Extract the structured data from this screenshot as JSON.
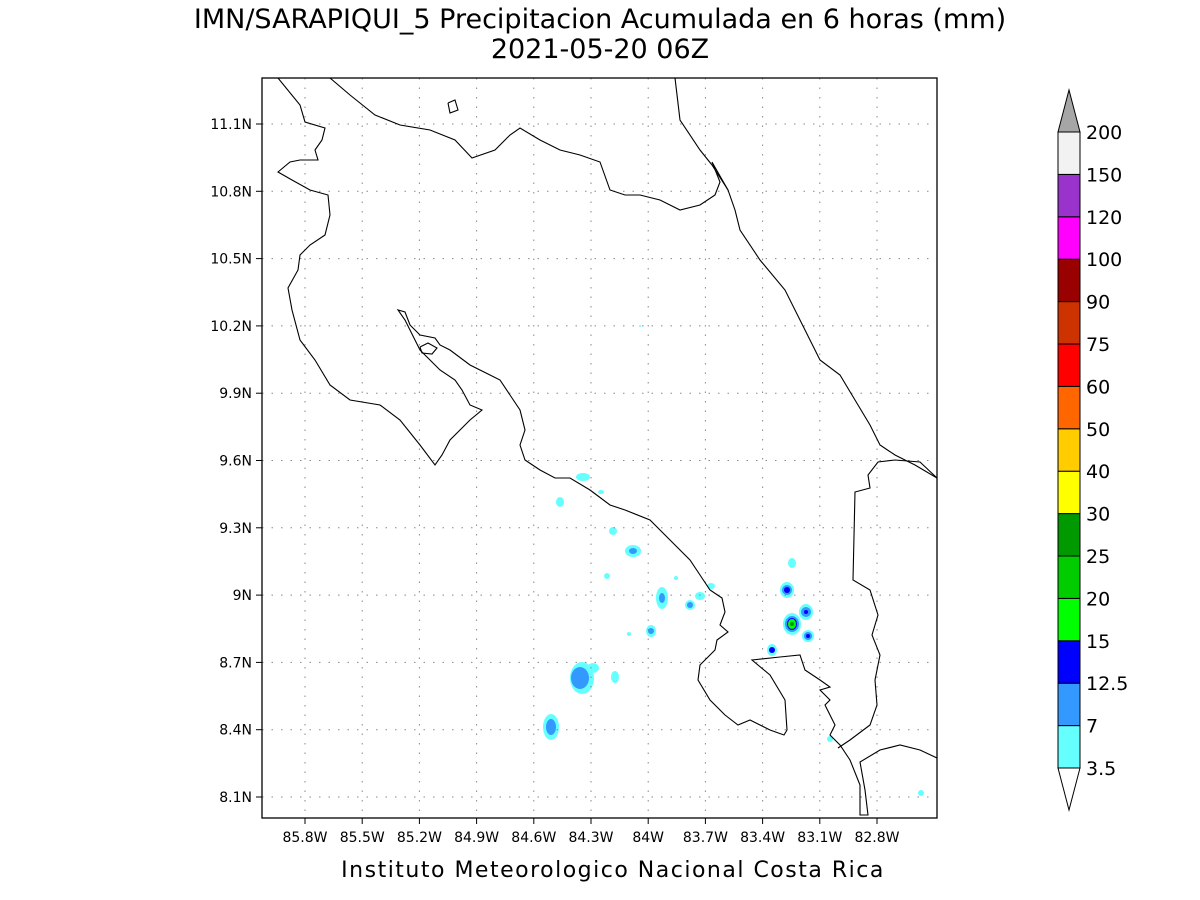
{
  "title": {
    "line1": "IMN/SARAPIQUI_5 Precipitacion Acumulada en 6 horas (mm)",
    "line2": "2021-05-20 06Z"
  },
  "axes": {
    "x_ticks": [
      "85.8W",
      "85.5W",
      "85.2W",
      "84.9W",
      "84.6W",
      "84.3W",
      "84W",
      "83.7W",
      "83.4W",
      "83.1W",
      "82.8W"
    ],
    "y_ticks": [
      "11.1N",
      "10.8N",
      "10.5N",
      "10.2N",
      "9.9N",
      "9.6N",
      "9.3N",
      "9N",
      "8.7N",
      "8.4N",
      "8.1N"
    ],
    "grid": "dotted"
  },
  "colorbar": {
    "levels": [
      "3.5",
      "7",
      "12.5",
      "15",
      "20",
      "25",
      "30",
      "40",
      "50",
      "60",
      "75",
      "90",
      "100",
      "120",
      "150",
      "200"
    ],
    "colors": [
      "#66ffff",
      "#3399ff",
      "#0000ff",
      "#00ff00",
      "#00cc00",
      "#009900",
      "#ffff00",
      "#ffcc00",
      "#ff6600",
      "#ff0000",
      "#cc3300",
      "#990000",
      "#ff00ff",
      "#9933cc",
      "#f2f2f2"
    ],
    "over_color": "#a6a6a6",
    "under_color": "#ffffff"
  },
  "footer": "Instituto Meteorologico Nacional Costa Rica"
}
